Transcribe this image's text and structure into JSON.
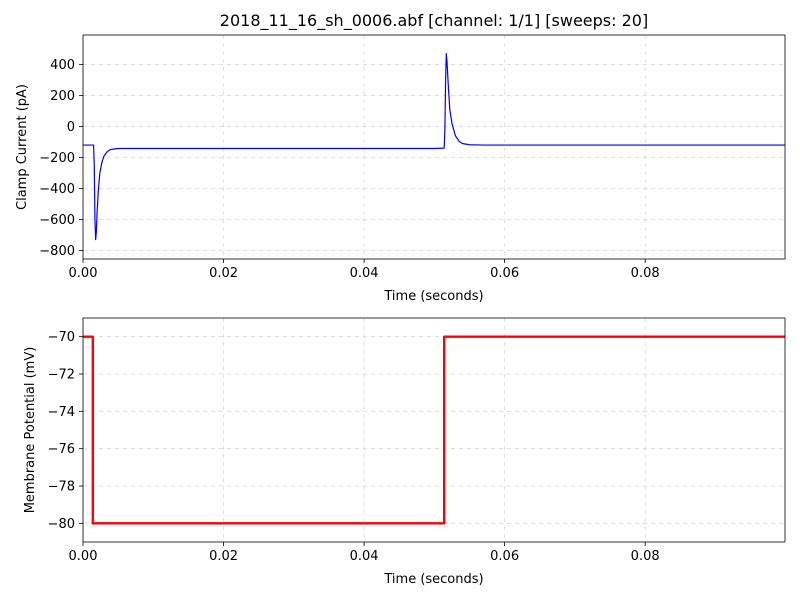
{
  "figure_title": "2018_11_16_sh_0006.abf [channel: 1/1] [sweeps: 20]",
  "chart_data": [
    {
      "type": "line",
      "xlabel": "Time (seconds)",
      "ylabel": "Clamp Current (pA)",
      "xlim": [
        0,
        0.0999
      ],
      "ylim": [
        -855,
        590
      ],
      "xticks": [
        0,
        0.02,
        0.04,
        0.06,
        0.08
      ],
      "xtick_labels": [
        "0.00",
        "0.02",
        "0.04",
        "0.06",
        "0.08"
      ],
      "yticks": [
        -800,
        -600,
        -400,
        -200,
        0,
        200,
        400
      ],
      "ytick_labels": [
        "−800",
        "−600",
        "−400",
        "−200",
        "0",
        "200",
        "400"
      ],
      "grid": true,
      "series": [
        {
          "color": "#0000ff",
          "x": [
            0,
            0.0015,
            0.0016,
            0.0017,
            0.0018,
            0.0019,
            0.002,
            0.0022,
            0.0024,
            0.0027,
            0.003,
            0.0035,
            0.004,
            0.005,
            0.006,
            0.01,
            0.02,
            0.03,
            0.04,
            0.05,
            0.0514,
            0.0515,
            0.0516,
            0.0517,
            0.0518,
            0.052,
            0.0522,
            0.0525,
            0.053,
            0.0535,
            0.054,
            0.055,
            0.057,
            0.06,
            0.07,
            0.08,
            0.09,
            0.0999
          ],
          "y": [
            -120,
            -120,
            -240,
            -600,
            -730,
            -680,
            -560,
            -400,
            -300,
            -230,
            -190,
            -160,
            -148,
            -142,
            -142,
            -142,
            -142,
            -142,
            -142,
            -142,
            -140,
            -20,
            300,
            470,
            420,
            250,
            110,
            20,
            -60,
            -95,
            -110,
            -118,
            -120,
            -120,
            -120,
            -120,
            -120,
            -120
          ]
        }
      ]
    },
    {
      "type": "line",
      "xlabel": "Time (seconds)",
      "ylabel": "Membrane Potential (mV)",
      "xlim": [
        0,
        0.0999
      ],
      "ylim": [
        -81,
        -69
      ],
      "xticks": [
        0,
        0.02,
        0.04,
        0.06,
        0.08
      ],
      "xtick_labels": [
        "0.00",
        "0.02",
        "0.04",
        "0.06",
        "0.08"
      ],
      "yticks": [
        -80,
        -78,
        -76,
        -74,
        -72,
        -70
      ],
      "ytick_labels": [
        "−80",
        "−78",
        "−76",
        "−74",
        "−72",
        "−70"
      ],
      "grid": true,
      "series": [
        {
          "color": "#ff0000",
          "x": [
            0,
            0.0014,
            0.0014,
            0.0514,
            0.0514,
            0.0999
          ],
          "y": [
            -70,
            -70,
            -80,
            -80,
            -70,
            -70
          ]
        }
      ]
    }
  ]
}
